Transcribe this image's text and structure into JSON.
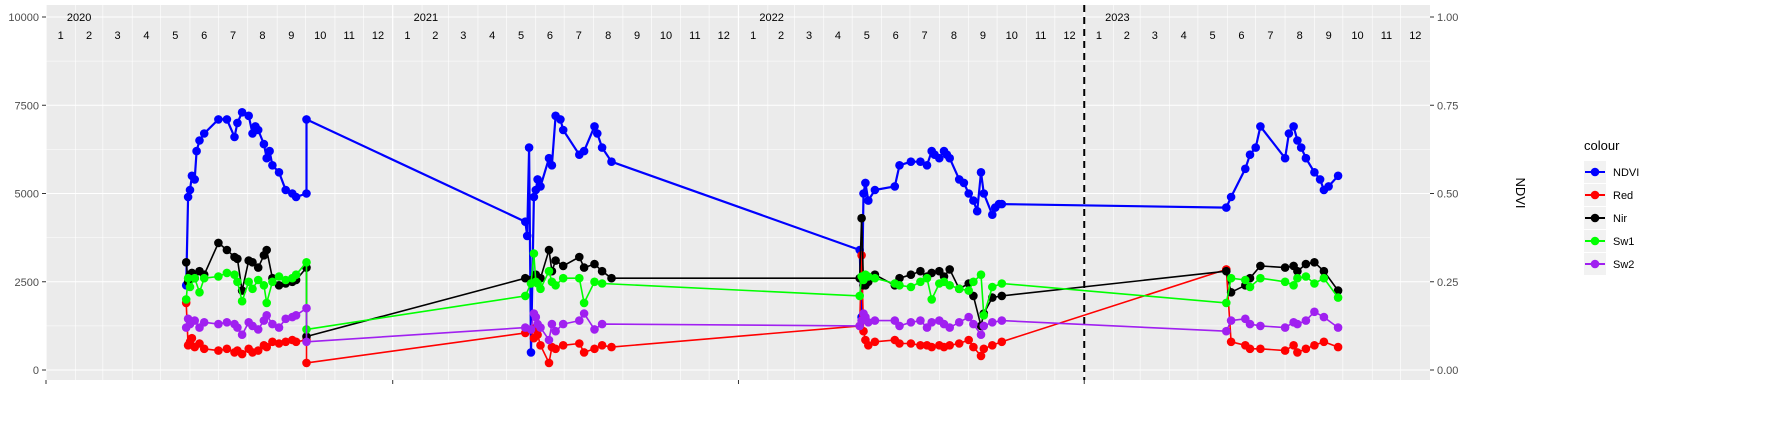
{
  "chart_data": {
    "type": "line",
    "title": "",
    "xlabel": "",
    "ylabel": "",
    "y2label": "NDVI",
    "x_domain": [
      "2020-01-01",
      "2024-01-01"
    ],
    "ylim": [
      0,
      10000
    ],
    "y2lim": [
      0,
      1
    ],
    "y_ticks": [
      0,
      2500,
      5000,
      7500,
      10000
    ],
    "y_tick_labels": [
      "0",
      "2500",
      "5000",
      "7500",
      "10000"
    ],
    "y2_tick_labels": [
      "0.00",
      "0.25",
      "0.50",
      "0.75",
      "1.00"
    ],
    "year_labels": [
      {
        "date": "2020-02-05",
        "text": "2020"
      },
      {
        "date": "2021-02-05",
        "text": "2021"
      },
      {
        "date": "2022-02-05",
        "text": "2022"
      },
      {
        "date": "2023-02-05",
        "text": "2023"
      }
    ],
    "month_labels": [
      "1",
      "2",
      "3",
      "4",
      "5",
      "6",
      "7",
      "8",
      "9",
      "10",
      "11",
      "12"
    ],
    "vline_date": "2023-01-01",
    "grid": true,
    "legend": {
      "title": "colour",
      "position": "right",
      "entries": [
        {
          "name": "NDVI",
          "color": "#0000FF"
        },
        {
          "name": "Red",
          "color": "#FF0000"
        },
        {
          "name": "Nir",
          "color": "#000000"
        },
        {
          "name": "Sw1",
          "color": "#00FF00"
        },
        {
          "name": "Sw2",
          "color": "#A020F0"
        }
      ]
    },
    "series": [
      {
        "name": "NDVI",
        "color": "#0000FF",
        "axis": "secondary",
        "x": [
          "2020-05-28",
          "2020-05-30",
          "2020-06-01",
          "2020-06-03",
          "2020-06-06",
          "2020-06-08",
          "2020-06-11",
          "2020-06-16",
          "2020-07-01",
          "2020-07-10",
          "2020-07-18",
          "2020-07-21",
          "2020-07-26",
          "2020-08-02",
          "2020-08-06",
          "2020-08-09",
          "2020-08-12",
          "2020-08-18",
          "2020-08-21",
          "2020-08-24",
          "2020-08-27",
          "2020-09-03",
          "2020-09-10",
          "2020-09-17",
          "2020-09-21",
          "2020-10-02",
          "2020-10-02",
          "2021-05-21",
          "2021-05-23",
          "2021-05-25",
          "2021-05-27",
          "2021-05-30",
          "2021-06-01",
          "2021-06-03",
          "2021-06-06",
          "2021-06-15",
          "2021-06-18",
          "2021-06-22",
          "2021-06-27",
          "2021-06-30",
          "2021-07-17",
          "2021-07-22",
          "2021-08-02",
          "2021-08-05",
          "2021-08-10",
          "2021-08-20",
          "2022-05-09",
          "2022-05-11",
          "2022-05-13",
          "2022-05-15",
          "2022-05-18",
          "2022-05-25",
          "2022-06-15",
          "2022-06-20",
          "2022-07-02",
          "2022-07-12",
          "2022-07-19",
          "2022-07-24",
          "2022-07-27",
          "2022-08-01",
          "2022-08-06",
          "2022-08-09",
          "2022-08-12",
          "2022-08-22",
          "2022-08-27",
          "2022-09-01",
          "2022-09-06",
          "2022-09-10",
          "2022-09-14",
          "2022-09-17",
          "2022-09-26",
          "2022-09-29",
          "2022-10-03",
          "2022-10-06",
          "2023-05-31",
          "2023-06-05",
          "2023-06-20",
          "2023-06-25",
          "2023-07-01",
          "2023-07-06",
          "2023-08-01",
          "2023-08-05",
          "2023-08-10",
          "2023-08-14",
          "2023-08-18",
          "2023-08-23",
          "2023-09-01",
          "2023-09-07",
          "2023-09-11",
          "2023-09-16",
          "2023-09-26"
        ],
        "y": [
          0.24,
          0.49,
          0.51,
          0.55,
          0.54,
          0.62,
          0.65,
          0.67,
          0.71,
          0.71,
          0.66,
          0.7,
          0.73,
          0.72,
          0.67,
          0.69,
          0.68,
          0.64,
          0.6,
          0.62,
          0.58,
          0.56,
          0.51,
          0.5,
          0.49,
          0.5,
          0.71,
          0.42,
          0.38,
          0.63,
          0.05,
          0.49,
          0.51,
          0.54,
          0.52,
          0.6,
          0.58,
          0.72,
          0.71,
          0.68,
          0.61,
          0.62,
          0.69,
          0.67,
          0.63,
          0.59,
          0.34,
          0.15,
          0.5,
          0.53,
          0.48,
          0.51,
          0.52,
          0.58,
          0.59,
          0.59,
          0.58,
          0.62,
          0.61,
          0.6,
          0.62,
          0.61,
          0.6,
          0.54,
          0.53,
          0.5,
          0.48,
          0.45,
          0.56,
          0.5,
          0.44,
          0.46,
          0.47,
          0.47,
          0.46,
          0.49,
          0.57,
          0.61,
          0.63,
          0.69,
          0.6,
          0.67,
          0.69,
          0.65,
          0.63,
          0.6,
          0.56,
          0.54,
          0.51,
          0.52,
          0.55
        ]
      },
      {
        "name": "Red",
        "color": "#FF0000",
        "axis": "primary",
        "x": [
          "2020-05-28",
          "2020-05-30",
          "2020-06-01",
          "2020-06-03",
          "2020-06-06",
          "2020-06-11",
          "2020-06-16",
          "2020-07-01",
          "2020-07-10",
          "2020-07-18",
          "2020-07-21",
          "2020-07-26",
          "2020-08-02",
          "2020-08-06",
          "2020-08-12",
          "2020-08-18",
          "2020-08-21",
          "2020-08-27",
          "2020-09-03",
          "2020-09-10",
          "2020-09-17",
          "2020-09-21",
          "2020-10-02",
          "2020-10-02",
          "2021-05-21",
          "2021-05-27",
          "2021-05-30",
          "2021-06-01",
          "2021-06-03",
          "2021-06-06",
          "2021-06-15",
          "2021-06-18",
          "2021-06-22",
          "2021-06-30",
          "2021-07-17",
          "2021-07-22",
          "2021-08-02",
          "2021-08-10",
          "2021-08-20",
          "2022-05-09",
          "2022-05-11",
          "2022-05-13",
          "2022-05-15",
          "2022-05-18",
          "2022-05-25",
          "2022-06-15",
          "2022-06-20",
          "2022-07-02",
          "2022-07-12",
          "2022-07-19",
          "2022-07-24",
          "2022-08-01",
          "2022-08-06",
          "2022-08-12",
          "2022-08-22",
          "2022-09-01",
          "2022-09-06",
          "2022-09-14",
          "2022-09-17",
          "2022-09-26",
          "2022-10-06",
          "2023-05-31",
          "2023-06-05",
          "2023-06-20",
          "2023-06-25",
          "2023-07-06",
          "2023-08-01",
          "2023-08-10",
          "2023-08-14",
          "2023-08-23",
          "2023-09-01",
          "2023-09-11",
          "2023-09-26"
        ],
        "y": [
          1900,
          700,
          800,
          900,
          650,
          750,
          600,
          550,
          600,
          500,
          550,
          450,
          600,
          500,
          550,
          700,
          650,
          800,
          750,
          800,
          850,
          800,
          850,
          200,
          1050,
          1150,
          900,
          1200,
          1000,
          700,
          200,
          650,
          600,
          700,
          750,
          500,
          600,
          700,
          650,
          1250,
          3250,
          1100,
          850,
          700,
          800,
          850,
          750,
          750,
          700,
          700,
          650,
          700,
          650,
          700,
          750,
          850,
          650,
          400,
          600,
          700,
          800,
          2850,
          800,
          700,
          600,
          600,
          550,
          700,
          500,
          600,
          700,
          800,
          650
        ]
      },
      {
        "name": "Nir",
        "color": "#000000",
        "axis": "primary",
        "x": [
          "2020-05-28",
          "2020-05-30",
          "2020-06-01",
          "2020-06-03",
          "2020-06-06",
          "2020-06-11",
          "2020-06-16",
          "2020-07-01",
          "2020-07-10",
          "2020-07-18",
          "2020-07-21",
          "2020-07-26",
          "2020-08-02",
          "2020-08-06",
          "2020-08-12",
          "2020-08-18",
          "2020-08-21",
          "2020-08-27",
          "2020-09-03",
          "2020-09-10",
          "2020-09-17",
          "2020-09-21",
          "2020-10-02",
          "2020-10-02",
          "2021-05-21",
          "2021-05-27",
          "2021-05-30",
          "2021-06-01",
          "2021-06-03",
          "2021-06-06",
          "2021-06-15",
          "2021-06-18",
          "2021-06-22",
          "2021-06-30",
          "2021-07-17",
          "2021-07-22",
          "2021-08-02",
          "2021-08-10",
          "2021-08-20",
          "2022-05-09",
          "2022-05-11",
          "2022-05-13",
          "2022-05-15",
          "2022-05-18",
          "2022-05-25",
          "2022-06-15",
          "2022-06-20",
          "2022-07-02",
          "2022-07-12",
          "2022-07-19",
          "2022-07-24",
          "2022-08-01",
          "2022-08-06",
          "2022-08-12",
          "2022-08-22",
          "2022-09-01",
          "2022-09-06",
          "2022-09-14",
          "2022-09-17",
          "2022-09-26",
          "2022-10-06",
          "2023-05-31",
          "2023-06-05",
          "2023-06-20",
          "2023-06-25",
          "2023-07-06",
          "2023-08-01",
          "2023-08-10",
          "2023-08-14",
          "2023-08-23",
          "2023-09-01",
          "2023-09-11",
          "2023-09-26"
        ],
        "y": [
          3050,
          2500,
          2700,
          2750,
          2600,
          2800,
          2700,
          3600,
          3400,
          3200,
          3150,
          2250,
          3100,
          3050,
          2900,
          3250,
          3400,
          2600,
          2400,
          2450,
          2500,
          2550,
          2900,
          950,
          2600,
          2550,
          2500,
          2700,
          2550,
          2600,
          3400,
          2800,
          3100,
          2950,
          3200,
          2900,
          3000,
          2800,
          2600,
          2600,
          4300,
          2400,
          2400,
          2500,
          2700,
          2400,
          2600,
          2700,
          2800,
          2650,
          2750,
          2800,
          2650,
          2850,
          2300,
          2450,
          2100,
          1250,
          1600,
          2050,
          2100,
          2800,
          2200,
          2400,
          2600,
          2950,
          2900,
          2950,
          2800,
          3000,
          3050,
          2800,
          2250
        ]
      },
      {
        "name": "Sw1",
        "color": "#00FF00",
        "axis": "primary",
        "x": [
          "2020-05-28",
          "2020-05-30",
          "2020-06-01",
          "2020-06-06",
          "2020-06-11",
          "2020-06-16",
          "2020-07-01",
          "2020-07-10",
          "2020-07-18",
          "2020-07-21",
          "2020-07-26",
          "2020-08-02",
          "2020-08-06",
          "2020-08-12",
          "2020-08-18",
          "2020-08-21",
          "2020-08-27",
          "2020-09-03",
          "2020-09-10",
          "2020-09-17",
          "2020-09-21",
          "2020-10-02",
          "2020-10-02",
          "2021-05-21",
          "2021-05-27",
          "2021-05-30",
          "2021-06-01",
          "2021-06-03",
          "2021-06-06",
          "2021-06-15",
          "2021-06-18",
          "2021-06-22",
          "2021-06-30",
          "2021-07-17",
          "2021-07-22",
          "2021-08-02",
          "2021-08-10",
          "2022-05-09",
          "2022-05-11",
          "2022-05-13",
          "2022-05-15",
          "2022-05-18",
          "2022-05-25",
          "2022-06-15",
          "2022-06-20",
          "2022-07-02",
          "2022-07-12",
          "2022-07-19",
          "2022-07-24",
          "2022-08-01",
          "2022-08-06",
          "2022-08-12",
          "2022-08-22",
          "2022-09-01",
          "2022-09-06",
          "2022-09-14",
          "2022-09-17",
          "2022-09-26",
          "2022-10-06",
          "2023-05-31",
          "2023-06-05",
          "2023-06-20",
          "2023-06-25",
          "2023-07-06",
          "2023-08-01",
          "2023-08-10",
          "2023-08-14",
          "2023-08-23",
          "2023-09-01",
          "2023-09-11",
          "2023-09-26"
        ],
        "y": [
          2000,
          2600,
          2350,
          2600,
          2200,
          2600,
          2650,
          2750,
          2700,
          2500,
          1950,
          2500,
          2300,
          2550,
          2400,
          1900,
          2500,
          2650,
          2550,
          2600,
          2700,
          3050,
          1150,
          2100,
          2450,
          3300,
          2500,
          2450,
          2300,
          2800,
          2500,
          2400,
          2600,
          2600,
          1900,
          2500,
          2450,
          2100,
          2650,
          2550,
          2700,
          2650,
          2600,
          2450,
          2400,
          2350,
          2500,
          2600,
          2000,
          2450,
          2500,
          2400,
          2300,
          2250,
          2500,
          2700,
          1550,
          2350,
          2450,
          1900,
          2600,
          2550,
          2350,
          2600,
          2500,
          2400,
          2600,
          2650,
          2450,
          2600,
          2050
        ]
      },
      {
        "name": "Sw2",
        "color": "#A020F0",
        "axis": "primary",
        "x": [
          "2020-05-28",
          "2020-05-30",
          "2020-06-01",
          "2020-06-06",
          "2020-06-11",
          "2020-06-16",
          "2020-07-01",
          "2020-07-10",
          "2020-07-18",
          "2020-07-21",
          "2020-07-26",
          "2020-08-02",
          "2020-08-06",
          "2020-08-12",
          "2020-08-18",
          "2020-08-21",
          "2020-08-27",
          "2020-09-03",
          "2020-09-10",
          "2020-09-17",
          "2020-09-21",
          "2020-10-02",
          "2020-10-02",
          "2021-05-21",
          "2021-05-27",
          "2021-05-30",
          "2021-06-01",
          "2021-06-03",
          "2021-06-06",
          "2021-06-15",
          "2021-06-18",
          "2021-06-22",
          "2021-06-30",
          "2021-07-17",
          "2021-07-22",
          "2021-08-02",
          "2021-08-10",
          "2022-05-09",
          "2022-05-11",
          "2022-05-13",
          "2022-05-15",
          "2022-05-18",
          "2022-05-25",
          "2022-06-15",
          "2022-06-20",
          "2022-07-02",
          "2022-07-12",
          "2022-07-19",
          "2022-07-24",
          "2022-08-01",
          "2022-08-06",
          "2022-08-12",
          "2022-08-22",
          "2022-09-01",
          "2022-09-06",
          "2022-09-14",
          "2022-09-17",
          "2022-09-26",
          "2022-10-06",
          "2023-05-31",
          "2023-06-05",
          "2023-06-20",
          "2023-06-25",
          "2023-07-06",
          "2023-08-01",
          "2023-08-10",
          "2023-08-14",
          "2023-08-23",
          "2023-09-01",
          "2023-09-11",
          "2023-09-26"
        ],
        "y": [
          1200,
          1450,
          1300,
          1400,
          1200,
          1350,
          1300,
          1350,
          1300,
          1200,
          1000,
          1350,
          1250,
          1150,
          1400,
          1550,
          1300,
          1200,
          1450,
          1500,
          1550,
          1750,
          800,
          1200,
          1150,
          1600,
          1500,
          1300,
          1200,
          850,
          1300,
          1100,
          1300,
          1400,
          1600,
          1150,
          1300,
          1250,
          1400,
          1600,
          1500,
          1350,
          1400,
          1400,
          1250,
          1350,
          1400,
          1200,
          1350,
          1400,
          1300,
          1200,
          1350,
          1500,
          1300,
          1000,
          1250,
          1350,
          1400,
          1100,
          1400,
          1450,
          1300,
          1250,
          1200,
          1350,
          1300,
          1400,
          1650,
          1500,
          1200
        ]
      }
    ]
  }
}
